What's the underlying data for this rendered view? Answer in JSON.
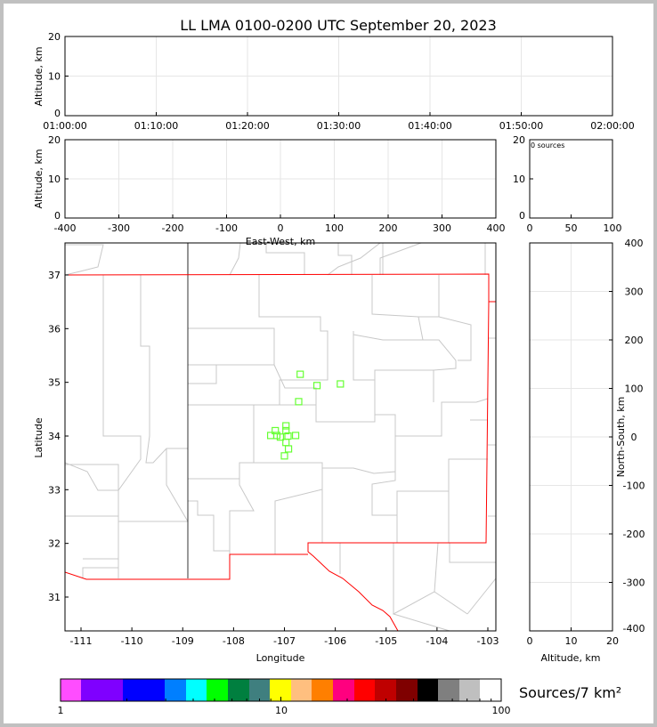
{
  "title": "LL LMA 0100-0200 UTC September 20, 2023",
  "colors": {
    "point": "#66ff33",
    "border_red": "#ff0000",
    "county": "#c8c8c8",
    "frame": "#c0c0c0"
  },
  "chart_data": [
    {
      "id": "time_height",
      "type": "scatter",
      "ylabel": "Altitude, km",
      "ylim": [
        0,
        20
      ],
      "yticks": [
        "0",
        "10",
        "20"
      ],
      "xticks": [
        "01:00:00",
        "01:10:00",
        "01:20:00",
        "01:30:00",
        "01:40:00",
        "01:50:00",
        "02:00:00"
      ],
      "grid": true,
      "points": []
    },
    {
      "id": "ew_altitude",
      "type": "scatter",
      "xlabel": "East-West, km",
      "ylabel": "Altitude, km",
      "xlim": [
        -400,
        400
      ],
      "ylim": [
        0,
        20
      ],
      "xticks": [
        "-400",
        "-300",
        "-200",
        "-100",
        "0",
        "100",
        "200",
        "300",
        "400"
      ],
      "yticks": [
        "0",
        "10",
        "20"
      ],
      "grid": true,
      "points": []
    },
    {
      "id": "altitude_histogram",
      "type": "bar",
      "annotation": "0 sources",
      "xlim": [
        0,
        100
      ],
      "ylim": [
        0,
        20
      ],
      "xticks": [
        "0",
        "50",
        "100"
      ],
      "yticks": [
        "0",
        "10",
        "20"
      ],
      "values": []
    },
    {
      "id": "plan_view",
      "type": "scatter",
      "xlabel": "Longitude",
      "ylabel": "Latitude",
      "xlim": [
        -111.5,
        -102.85
      ],
      "ylim": [
        30.4,
        37.6
      ],
      "xticks": [
        "-111",
        "-110",
        "-109",
        "-108",
        "-107",
        "-106",
        "-105",
        "-104",
        "-103"
      ],
      "yticks": [
        "31",
        "32",
        "33",
        "34",
        "35",
        "36",
        "37"
      ],
      "points": [
        {
          "lon": -106.69,
          "lat": 35.15
        },
        {
          "lon": -106.36,
          "lat": 34.94
        },
        {
          "lon": -105.9,
          "lat": 34.97
        },
        {
          "lon": -106.72,
          "lat": 34.64
        },
        {
          "lon": -106.97,
          "lat": 34.19
        },
        {
          "lon": -106.97,
          "lat": 34.1
        },
        {
          "lon": -107.18,
          "lat": 34.1
        },
        {
          "lon": -107.27,
          "lat": 34.01
        },
        {
          "lon": -107.15,
          "lat": 34.01
        },
        {
          "lon": -107.08,
          "lat": 33.98
        },
        {
          "lon": -106.93,
          "lat": 34.0
        },
        {
          "lon": -106.78,
          "lat": 34.01
        },
        {
          "lon": -106.97,
          "lat": 33.88
        },
        {
          "lon": -106.92,
          "lat": 33.76
        },
        {
          "lon": -107.0,
          "lat": 33.63
        }
      ]
    },
    {
      "id": "altitude_ns",
      "type": "scatter",
      "xlabel": "Altitude, km",
      "ylabel": "North-South, km",
      "xlim": [
        0,
        20
      ],
      "ylim": [
        -400,
        400
      ],
      "xticks": [
        "0",
        "10",
        "20"
      ],
      "yticks": [
        "-400",
        "-300",
        "-200",
        "-100",
        "0",
        "100",
        "200",
        "300",
        "400"
      ],
      "grid": true,
      "points": []
    }
  ],
  "colorbar": {
    "label": "Sources/7 km²",
    "scale": "log",
    "range": [
      1,
      100
    ],
    "tick_labels": [
      "1",
      "10",
      "100"
    ],
    "colors": [
      "#ff4dff",
      "#7f00ff",
      "#0000ff",
      "#007fff",
      "#00ffff",
      "#00ff00",
      "#007f3f",
      "#3f7f7f",
      "#ffff00",
      "#ffbf7f",
      "#ff7f00",
      "#ff007f",
      "#ff0000",
      "#bf0000",
      "#7f0000",
      "#000000",
      "#7f7f7f",
      "#bfbfbf",
      "#ffffff"
    ]
  }
}
